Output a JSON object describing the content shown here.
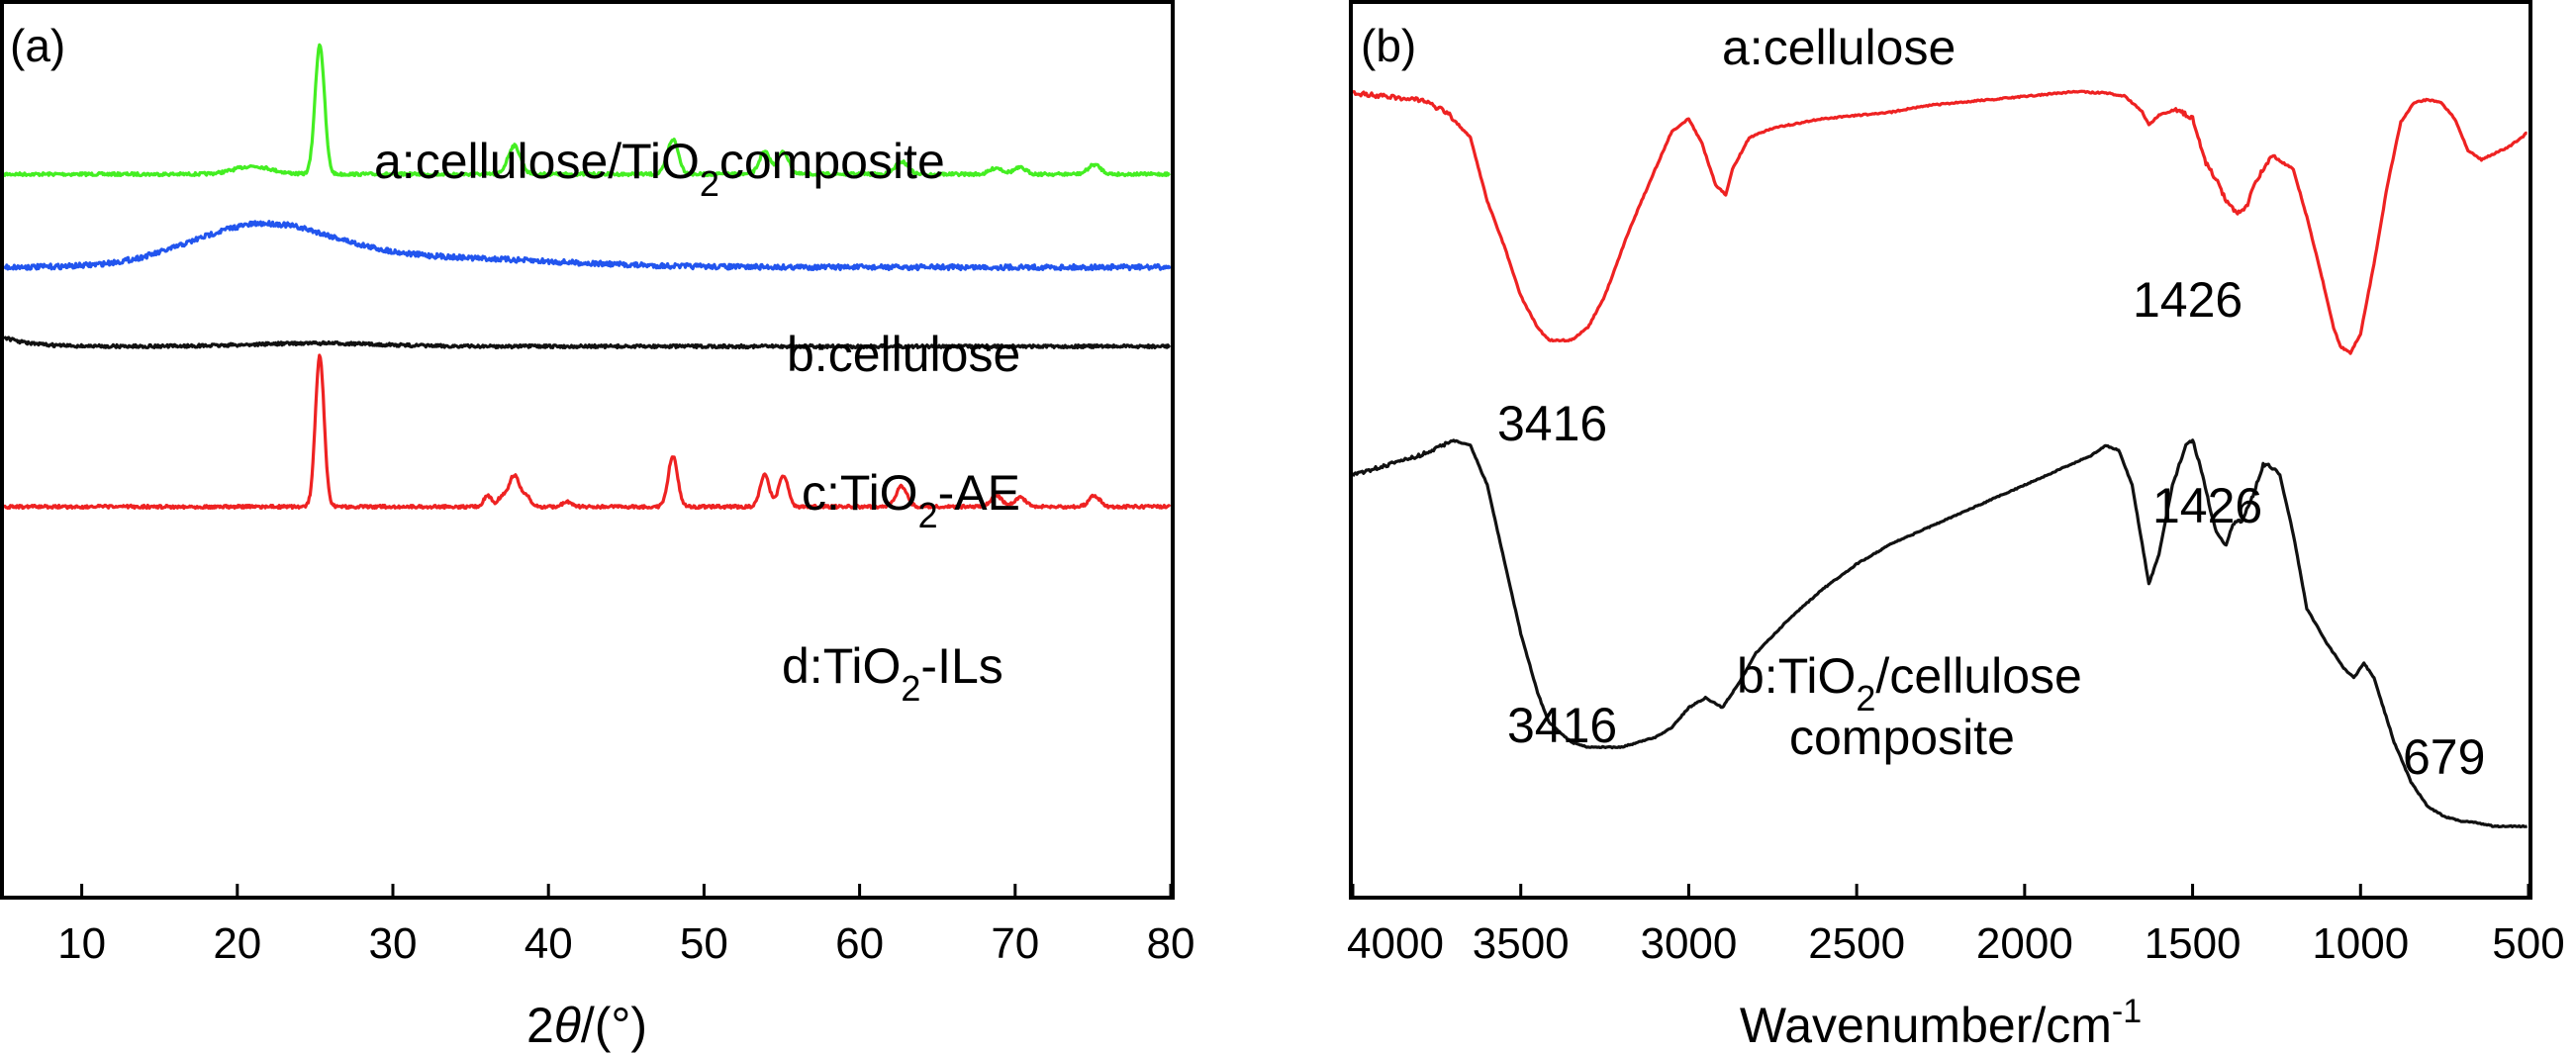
{
  "chart_data": [
    {
      "type": "line",
      "panel_label": "(a)",
      "xlabel_pre": "2",
      "xlabel_theta": "θ",
      "xlabel_post": "/(°)",
      "xlim": [
        5,
        80
      ],
      "x_ticks": [
        10,
        20,
        30,
        40,
        50,
        60,
        70,
        80
      ],
      "y_axis": "stacked offset intensity, no tick labels",
      "series": [
        {
          "name": "a:cellulose/TiO2composite",
          "label_pre": "a:cellulose/TiO",
          "label_sub": "2",
          "label_post": "composite",
          "color": "#44ee22",
          "baseline": 0.86,
          "peaks": [
            [
              21,
              0.05,
              1.2
            ],
            [
              25.3,
              0.82,
              0.3
            ],
            [
              37.8,
              0.18,
              0.4
            ],
            [
              48.0,
              0.22,
              0.35
            ],
            [
              53.9,
              0.14,
              0.35
            ],
            [
              55.1,
              0.14,
              0.35
            ],
            [
              62.7,
              0.08,
              0.4
            ],
            [
              68.8,
              0.04,
              0.4
            ],
            [
              70.3,
              0.04,
              0.4
            ],
            [
              75.1,
              0.06,
              0.4
            ]
          ]
        },
        {
          "name": "b:cellulose",
          "label_pre": "b:cellulose",
          "label_sub": "",
          "label_post": "",
          "color": "#2255ee",
          "baseline": 0.91,
          "peaks": [
            [
              21.5,
              0.25,
              4.5
            ],
            [
              32,
              0.06,
              8
            ]
          ]
        },
        {
          "name": "c:TiO2-AE",
          "label_pre": "c:TiO",
          "label_sub": "2",
          "label_post": "-AE",
          "color": "#111111",
          "baseline": 1.03,
          "peaks": [
            [
              25,
              0.02,
              4
            ]
          ]
        },
        {
          "name": "d:TiO2-ILs",
          "label_pre": "d:TiO",
          "label_sub": "2",
          "label_post": "-ILs",
          "color": "#ee2222",
          "baseline": 1.0,
          "peaks": [
            [
              25.3,
              0.95,
              0.28
            ],
            [
              36.1,
              0.07,
              0.25
            ],
            [
              37.0,
              0.06,
              0.25
            ],
            [
              37.8,
              0.2,
              0.35
            ],
            [
              38.6,
              0.06,
              0.25
            ],
            [
              41.2,
              0.03,
              0.3
            ],
            [
              48.0,
              0.32,
              0.3
            ],
            [
              53.9,
              0.2,
              0.3
            ],
            [
              55.1,
              0.2,
              0.3
            ],
            [
              62.7,
              0.13,
              0.35
            ],
            [
              68.8,
              0.07,
              0.35
            ],
            [
              70.3,
              0.06,
              0.35
            ],
            [
              75.1,
              0.07,
              0.35
            ]
          ]
        }
      ]
    },
    {
      "type": "line",
      "panel_label": "(b)",
      "xlabel_pre": "Wavenumber/cm",
      "xlabel_sup": "-1",
      "xlim": [
        4000,
        500
      ],
      "x_ticks": [
        4000,
        3500,
        3000,
        2500,
        2000,
        1500,
        1000,
        500
      ],
      "y_axis": "stacked transmittance, no tick labels",
      "series": [
        {
          "name": "a:cellulose",
          "label": "a:cellulose",
          "color": "#ee2222",
          "points": [
            [
              4000,
              0.94
            ],
            [
              3900,
              0.93
            ],
            [
              3800,
              0.92
            ],
            [
              3720,
              0.88
            ],
            [
              3650,
              0.8
            ],
            [
              3600,
              0.6
            ],
            [
              3550,
              0.46
            ],
            [
              3500,
              0.3
            ],
            [
              3450,
              0.2
            ],
            [
              3416,
              0.16
            ],
            [
              3350,
              0.16
            ],
            [
              3300,
              0.2
            ],
            [
              3250,
              0.3
            ],
            [
              3180,
              0.5
            ],
            [
              3100,
              0.7
            ],
            [
              3050,
              0.82
            ],
            [
              3000,
              0.86
            ],
            [
              2960,
              0.78
            ],
            [
              2920,
              0.65
            ],
            [
              2890,
              0.62
            ],
            [
              2870,
              0.7
            ],
            [
              2820,
              0.8
            ],
            [
              2750,
              0.83
            ],
            [
              2600,
              0.86
            ],
            [
              2400,
              0.88
            ],
            [
              2300,
              0.9
            ],
            [
              2200,
              0.91
            ],
            [
              2000,
              0.93
            ],
            [
              1850,
              0.945
            ],
            [
              1750,
              0.94
            ],
            [
              1700,
              0.93
            ],
            [
              1650,
              0.88
            ],
            [
              1630,
              0.84
            ],
            [
              1600,
              0.87
            ],
            [
              1550,
              0.89
            ],
            [
              1500,
              0.86
            ],
            [
              1460,
              0.72
            ],
            [
              1426,
              0.66
            ],
            [
              1400,
              0.6
            ],
            [
              1370,
              0.56
            ],
            [
              1340,
              0.58
            ],
            [
              1320,
              0.64
            ],
            [
              1280,
              0.72
            ],
            [
              1260,
              0.74
            ],
            [
              1200,
              0.7
            ],
            [
              1160,
              0.55
            ],
            [
              1120,
              0.38
            ],
            [
              1080,
              0.2
            ],
            [
              1060,
              0.14
            ],
            [
              1030,
              0.12
            ],
            [
              1000,
              0.18
            ],
            [
              960,
              0.4
            ],
            [
              920,
              0.65
            ],
            [
              880,
              0.85
            ],
            [
              840,
              0.91
            ],
            [
              800,
              0.92
            ],
            [
              760,
              0.91
            ],
            [
              720,
              0.86
            ],
            [
              680,
              0.76
            ],
            [
              640,
              0.73
            ],
            [
              600,
              0.75
            ],
            [
              560,
              0.77
            ],
            [
              520,
              0.8
            ],
            [
              500,
              0.82
            ]
          ]
        },
        {
          "name": "b:TiO2/cellulose composite",
          "label_pre": "b:TiO",
          "label_sub": "2",
          "label_post": "/cellulose",
          "label_line2": "composite",
          "color": "#111111",
          "points": [
            [
              4000,
              0.72
            ],
            [
              3900,
              0.74
            ],
            [
              3800,
              0.76
            ],
            [
              3700,
              0.79
            ],
            [
              3650,
              0.78
            ],
            [
              3600,
              0.7
            ],
            [
              3550,
              0.55
            ],
            [
              3500,
              0.4
            ],
            [
              3450,
              0.28
            ],
            [
              3416,
              0.22
            ],
            [
              3350,
              0.18
            ],
            [
              3300,
              0.17
            ],
            [
              3200,
              0.17
            ],
            [
              3100,
              0.19
            ],
            [
              3050,
              0.21
            ],
            [
              3000,
              0.25
            ],
            [
              2950,
              0.27
            ],
            [
              2900,
              0.25
            ],
            [
              2850,
              0.3
            ],
            [
              2800,
              0.36
            ],
            [
              2700,
              0.43
            ],
            [
              2600,
              0.49
            ],
            [
              2500,
              0.54
            ],
            [
              2400,
              0.58
            ],
            [
              2300,
              0.61
            ],
            [
              2200,
              0.64
            ],
            [
              2100,
              0.67
            ],
            [
              2000,
              0.7
            ],
            [
              1900,
              0.73
            ],
            [
              1800,
              0.76
            ],
            [
              1760,
              0.78
            ],
            [
              1720,
              0.77
            ],
            [
              1680,
              0.7
            ],
            [
              1650,
              0.58
            ],
            [
              1630,
              0.5
            ],
            [
              1600,
              0.56
            ],
            [
              1560,
              0.7
            ],
            [
              1520,
              0.78
            ],
            [
              1500,
              0.79
            ],
            [
              1470,
              0.72
            ],
            [
              1440,
              0.63
            ],
            [
              1426,
              0.6
            ],
            [
              1400,
              0.58
            ],
            [
              1380,
              0.62
            ],
            [
              1350,
              0.63
            ],
            [
              1320,
              0.68
            ],
            [
              1290,
              0.74
            ],
            [
              1270,
              0.74
            ],
            [
              1240,
              0.72
            ],
            [
              1200,
              0.6
            ],
            [
              1160,
              0.45
            ],
            [
              1100,
              0.38
            ],
            [
              1050,
              0.33
            ],
            [
              1020,
              0.31
            ],
            [
              990,
              0.34
            ],
            [
              960,
              0.31
            ],
            [
              900,
              0.18
            ],
            [
              850,
              0.1
            ],
            [
              800,
              0.05
            ],
            [
              750,
              0.03
            ],
            [
              700,
              0.02
            ],
            [
              679,
              0.02
            ],
            [
              600,
              0.01
            ],
            [
              500,
              0.01
            ]
          ]
        }
      ],
      "annotations": [
        "3416",
        "1426",
        "3416",
        "1426",
        "679"
      ]
    }
  ]
}
